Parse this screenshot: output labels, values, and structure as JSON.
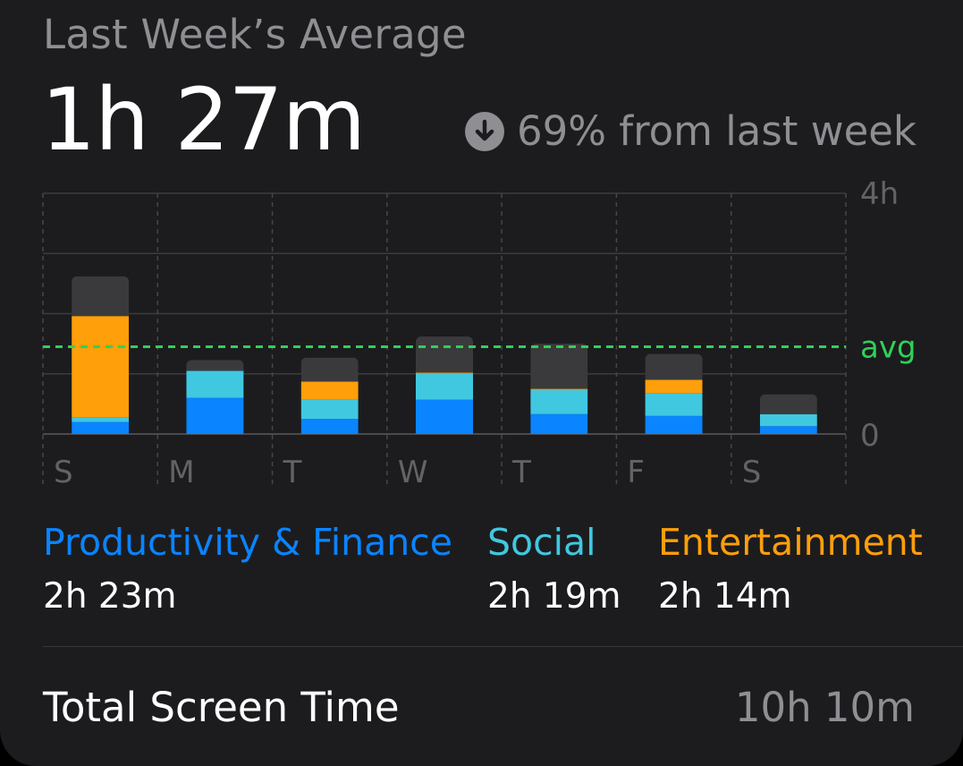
{
  "header": {
    "subtitle": "Last Week’s Average",
    "average": "1h 27m",
    "change_text": "69% from last week",
    "change_icon": "arrow-down-circle-icon"
  },
  "chart_data": {
    "type": "bar",
    "stacked": true,
    "categories": [
      "S",
      "M",
      "T",
      "W",
      "T",
      "F",
      "S"
    ],
    "series": [
      {
        "name": "Productivity & Finance",
        "color": "#0a84ff",
        "values": [
          0.2,
          0.6,
          0.25,
          0.57,
          0.33,
          0.3,
          0.13
        ]
      },
      {
        "name": "Social",
        "color": "#40c8e0",
        "values": [
          0.08,
          0.45,
          0.32,
          0.43,
          0.4,
          0.38,
          0.2
        ]
      },
      {
        "name": "Entertainment",
        "color": "#ff9f0a",
        "values": [
          1.68,
          0,
          0.3,
          0.02,
          0.02,
          0.22,
          0
        ]
      },
      {
        "color": "#3a3a3c",
        "values": [
          0.66,
          0.18,
          0.4,
          0.6,
          0.75,
          0.43,
          0.33
        ]
      }
    ],
    "ylim": [
      0,
      4
    ],
    "y_ticks": [
      "0",
      "4h"
    ],
    "gridlines": [
      0,
      1,
      2,
      3,
      4
    ],
    "average": 1.45,
    "average_label": "avg",
    "average_color": "#30d158",
    "grid": true
  },
  "categories": [
    {
      "label": "Productivity & Finance",
      "value": "2h 23m",
      "color": "#0a84ff"
    },
    {
      "label": "Social",
      "value": "2h 19m",
      "color": "#40c8e0"
    },
    {
      "label": "Entertainment",
      "value": "2h 14m",
      "color": "#ff9f0a"
    }
  ],
  "total": {
    "label": "Total Screen Time",
    "value": "10h 10m"
  }
}
